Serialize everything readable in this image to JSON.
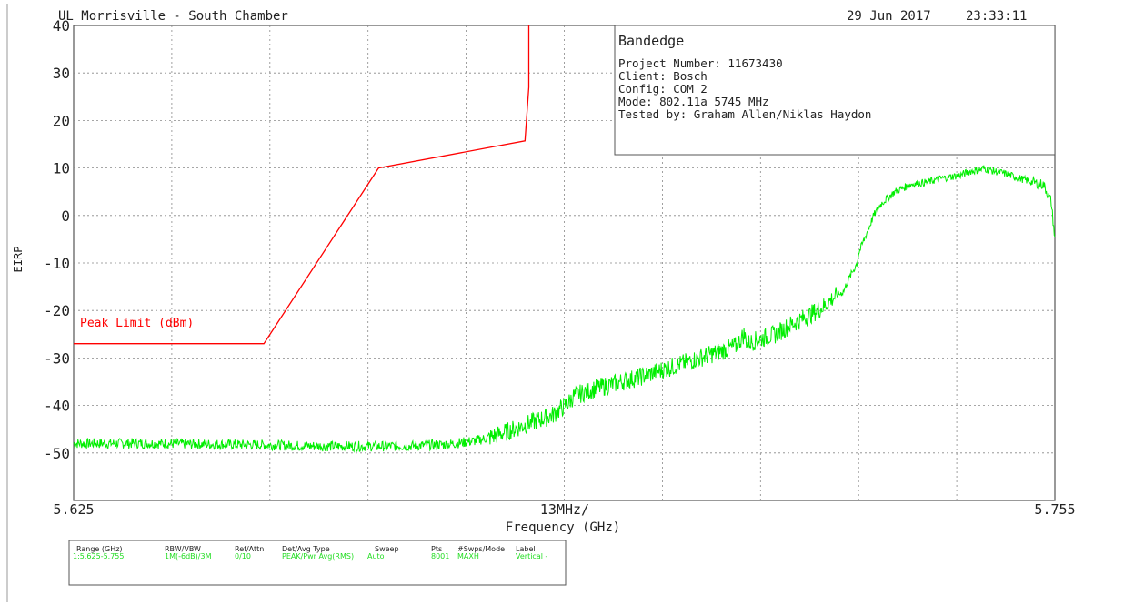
{
  "header": {
    "site": "UL Morrisville - South Chamber",
    "date": "29 Jun 2017",
    "time": "23:33:11"
  },
  "info_box": {
    "title": "Bandedge",
    "lines": [
      "Project Number: 11673430",
      "Client: Bosch",
      "Config: COM 2",
      "Mode: 802.11a 5745 MHz",
      "Tested by: Graham Allen/Niklas Haydon"
    ]
  },
  "chart_data": {
    "type": "line",
    "ylabel": "EIRP",
    "xlabel": "Frequency (GHz)",
    "x_range": [
      5.625,
      5.755
    ],
    "ylim": [
      -60,
      40
    ],
    "y_ticks": [
      40,
      30,
      20,
      10,
      0,
      -10,
      -20,
      -30,
      -40,
      -50
    ],
    "x_tick_labels": {
      "start": "5.625",
      "end": "5.755",
      "center": "13MHz/"
    },
    "grid": true,
    "colors": {
      "limit": "#ff0000",
      "trace": "#00ee00",
      "axis": "#555555",
      "grid": "#888888"
    },
    "series": [
      {
        "name": "Peak Limit (dBm)",
        "x": [
          5.625,
          5.6502,
          5.6654,
          5.6848,
          5.6853,
          5.6853
        ],
        "y": [
          -27,
          -27,
          10,
          15.7,
          27,
          40
        ]
      },
      {
        "x": [
          5.625,
          5.63,
          5.635,
          5.64,
          5.645,
          5.65,
          5.655,
          5.66,
          5.665,
          5.67,
          5.6745,
          5.678,
          5.68,
          5.6825,
          5.685,
          5.6885,
          5.6905,
          5.6913,
          5.694,
          5.7,
          5.706,
          5.7128,
          5.7138,
          5.7143,
          5.715,
          5.718,
          5.72,
          5.7225,
          5.7245,
          5.7255,
          5.727,
          5.7275,
          5.7288,
          5.729,
          5.7295,
          5.73,
          5.7305,
          5.731,
          5.732,
          5.7338,
          5.736,
          5.738,
          5.74,
          5.7425,
          5.7438,
          5.7452,
          5.7455,
          5.7462,
          5.748,
          5.75,
          5.752,
          5.7535,
          5.7545,
          5.755
        ],
        "y": [
          -48,
          -48,
          -48,
          -48.1,
          -48.2,
          -48.3,
          -48.5,
          -48.6,
          -48.6,
          -48.5,
          -48.2,
          -47.5,
          -46.8,
          -45.5,
          -44,
          -42,
          -39.5,
          -38,
          -36.5,
          -34,
          -31,
          -27.5,
          -25,
          -27,
          -26.5,
          -25,
          -23,
          -21,
          -19,
          -17.5,
          -16,
          -14,
          -10,
          -8,
          -6,
          -4,
          -2,
          0,
          2.5,
          5,
          6.6,
          7,
          7.8,
          8.5,
          9.3,
          9.6,
          10,
          9.6,
          9,
          8,
          7,
          6.5,
          3,
          -5
        ]
      }
    ]
  },
  "table": {
    "headers": [
      "Range (GHz)",
      "RBW/VBW",
      "Ref/Attn",
      "Det/Avg Type",
      "Sweep",
      "Pts",
      "#Swps/Mode",
      "Label"
    ],
    "row": [
      "1:5.625-5.755",
      "1M(-6dB)/3M",
      "0/10",
      "PEAK/Pwr Avg(RMS)",
      "Auto",
      "8001",
      "MAXH",
      "Vertical -"
    ]
  }
}
